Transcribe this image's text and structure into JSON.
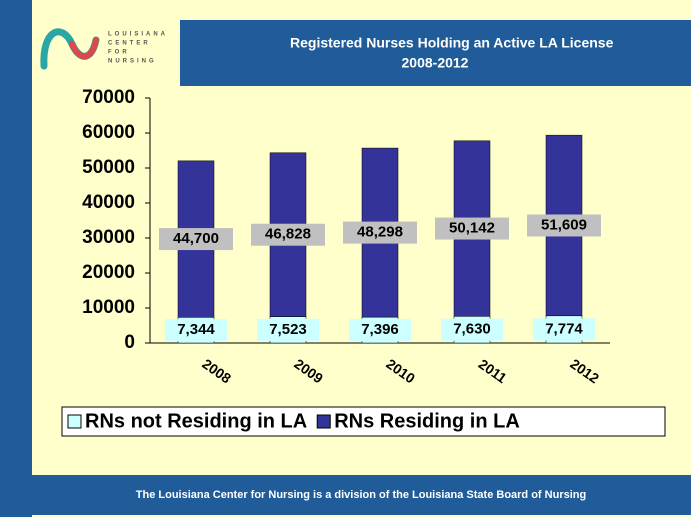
{
  "logo": [
    "LOUISIANA",
    "CENTER",
    "FOR",
    "NURSING"
  ],
  "footer": "The Louisiana Center for Nursing is a division of the Louisiana State Board of Nursing",
  "chart_data": {
    "type": "stacked_bar",
    "title": "Registered Nurses Holding an Active LA License",
    "subtitle": "2008-2012",
    "categories": [
      "2008",
      "2009",
      "2010",
      "2011",
      "2012"
    ],
    "series": [
      {
        "name": "RNs not Residing in LA",
        "color": "#ccffff",
        "values": [
          7344,
          7523,
          7396,
          7630,
          7774
        ],
        "value_labels": [
          "7,344",
          "7,523",
          "7,396",
          "7,630",
          "7,774"
        ]
      },
      {
        "name": "RNs Residing in LA",
        "color": "#333399",
        "values": [
          44700,
          46828,
          48298,
          50142,
          51609
        ],
        "value_labels": [
          "44,700",
          "46,828",
          "48,298",
          "50,142",
          "51,609"
        ]
      }
    ],
    "ylim": [
      0,
      70000
    ],
    "yticks": [
      0,
      10000,
      20000,
      30000,
      40000,
      50000,
      60000,
      70000
    ],
    "legend": "bottom"
  }
}
